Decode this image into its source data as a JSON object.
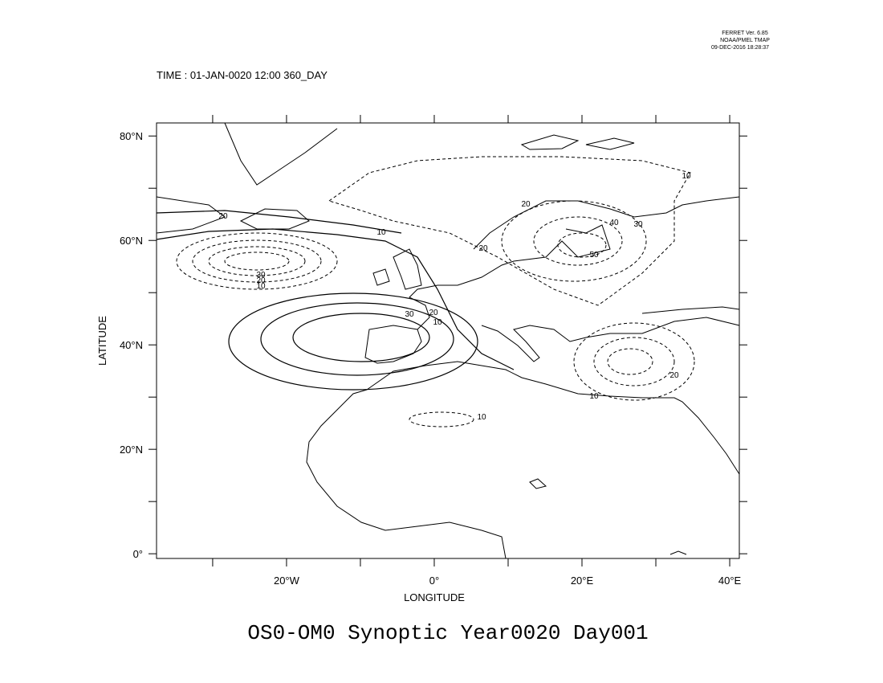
{
  "header": {
    "lines": [
      "FERRET Ver. 6.85",
      "NOAA/PMEL TMAP",
      "09-DEC-2016 18:28:37"
    ]
  },
  "time_label": "TIME : 01-JAN-0020 12:00 360_DAY",
  "map": {
    "xlim": [
      -37.6,
      41.3
    ],
    "ylim": [
      -0.9,
      82.5
    ],
    "xticks": [
      {
        "value": -20,
        "label": "20°W"
      },
      {
        "value": 0,
        "label": "0°"
      },
      {
        "value": 20,
        "label": "20°E"
      },
      {
        "value": 40,
        "label": "40°E"
      }
    ],
    "minor_xticks": [
      -30,
      -10,
      10,
      30
    ],
    "yticks": [
      {
        "value": 0,
        "label": "0°"
      },
      {
        "value": 20,
        "label": "20°N"
      },
      {
        "value": 40,
        "label": "40°N"
      },
      {
        "value": 60,
        "label": "60°N"
      },
      {
        "value": 80,
        "label": "80°N"
      }
    ],
    "minor_yticks": [
      10,
      30,
      50,
      70
    ],
    "xlabel": "LONGITUDE",
    "ylabel": "LATITUDE",
    "contour_labels": [
      20,
      10,
      30,
      20,
      10,
      10,
      20,
      30,
      20,
      20,
      40,
      30,
      50,
      10,
      20,
      10,
      10
    ]
  },
  "title": "OS0-OM0 Synoptic Year0020 Day001"
}
